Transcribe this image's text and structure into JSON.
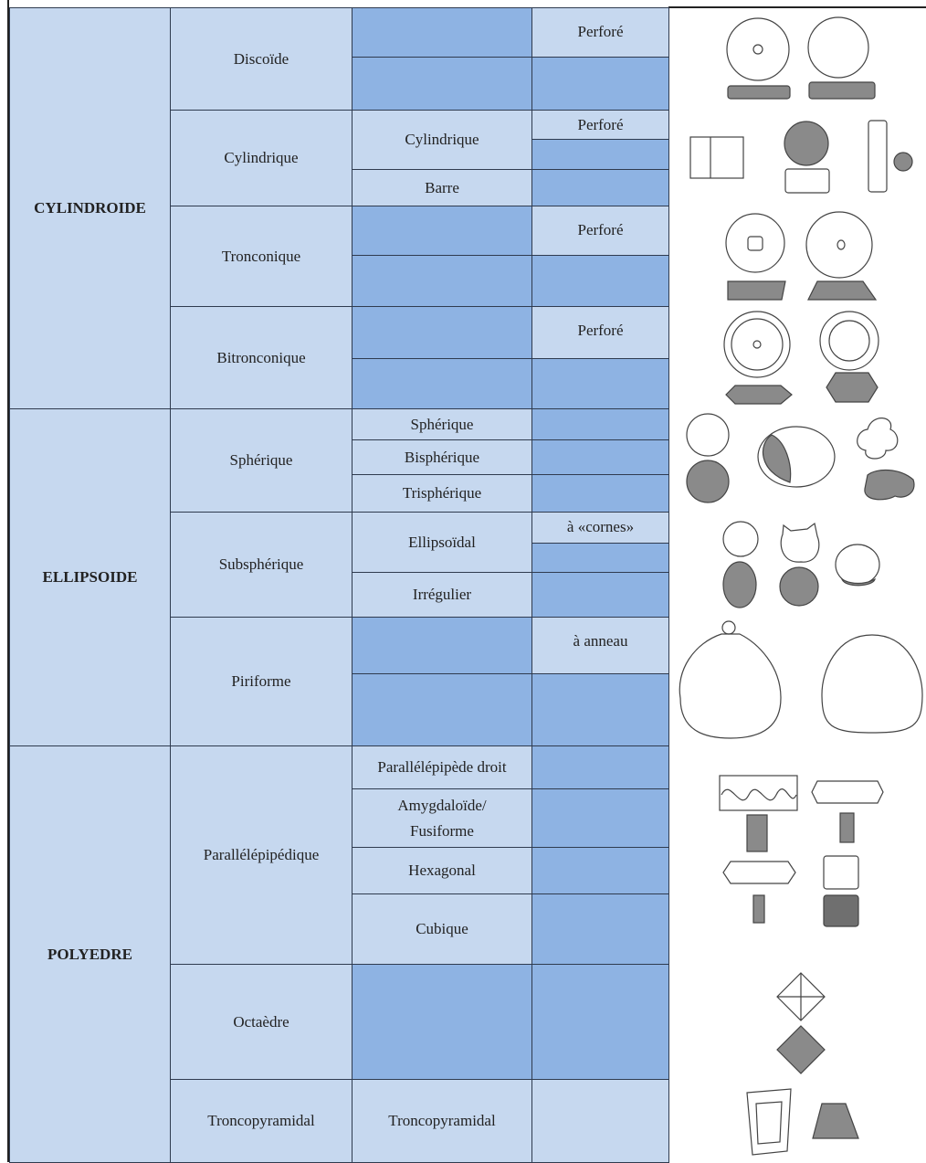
{
  "table": {
    "groups": [
      {
        "label": "CYLINDROIDE",
        "shapes": [
          {
            "label": "Discoïde",
            "variants": [
              "Perforé"
            ]
          },
          {
            "label": "Cylindrique",
            "subtypes": [
              "Cylindrique",
              "Barre"
            ],
            "variants": [
              "Perforé"
            ]
          },
          {
            "label": "Tronconique",
            "variants": [
              "Perforé"
            ]
          },
          {
            "label": "Bitronconique",
            "variants": [
              "Perforé"
            ]
          }
        ]
      },
      {
        "label": "ELLIPSOIDE",
        "shapes": [
          {
            "label": "Sphérique",
            "subtypes": [
              "Sphérique",
              "Bisphérique",
              "Trisphérique"
            ]
          },
          {
            "label": "Subsphérique",
            "subtypes": [
              "Ellipsoïdal",
              "Irrégulier"
            ],
            "variants": [
              "à «cornes»"
            ]
          },
          {
            "label": "Piriforme",
            "variants": [
              "à anneau"
            ]
          }
        ]
      },
      {
        "label": "POLYEDRE",
        "shapes": [
          {
            "label": "Parallélépipédique",
            "subtypes": [
              "Parallélépipède droit",
              "Amygdaloïde/\nFusiforme",
              "Hexagonal",
              "Cubique"
            ]
          },
          {
            "label": "Octaèdre"
          },
          {
            "label": "Troncopyramidal",
            "subtypes": [
              "Troncopyramidal"
            ]
          }
        ]
      }
    ]
  }
}
